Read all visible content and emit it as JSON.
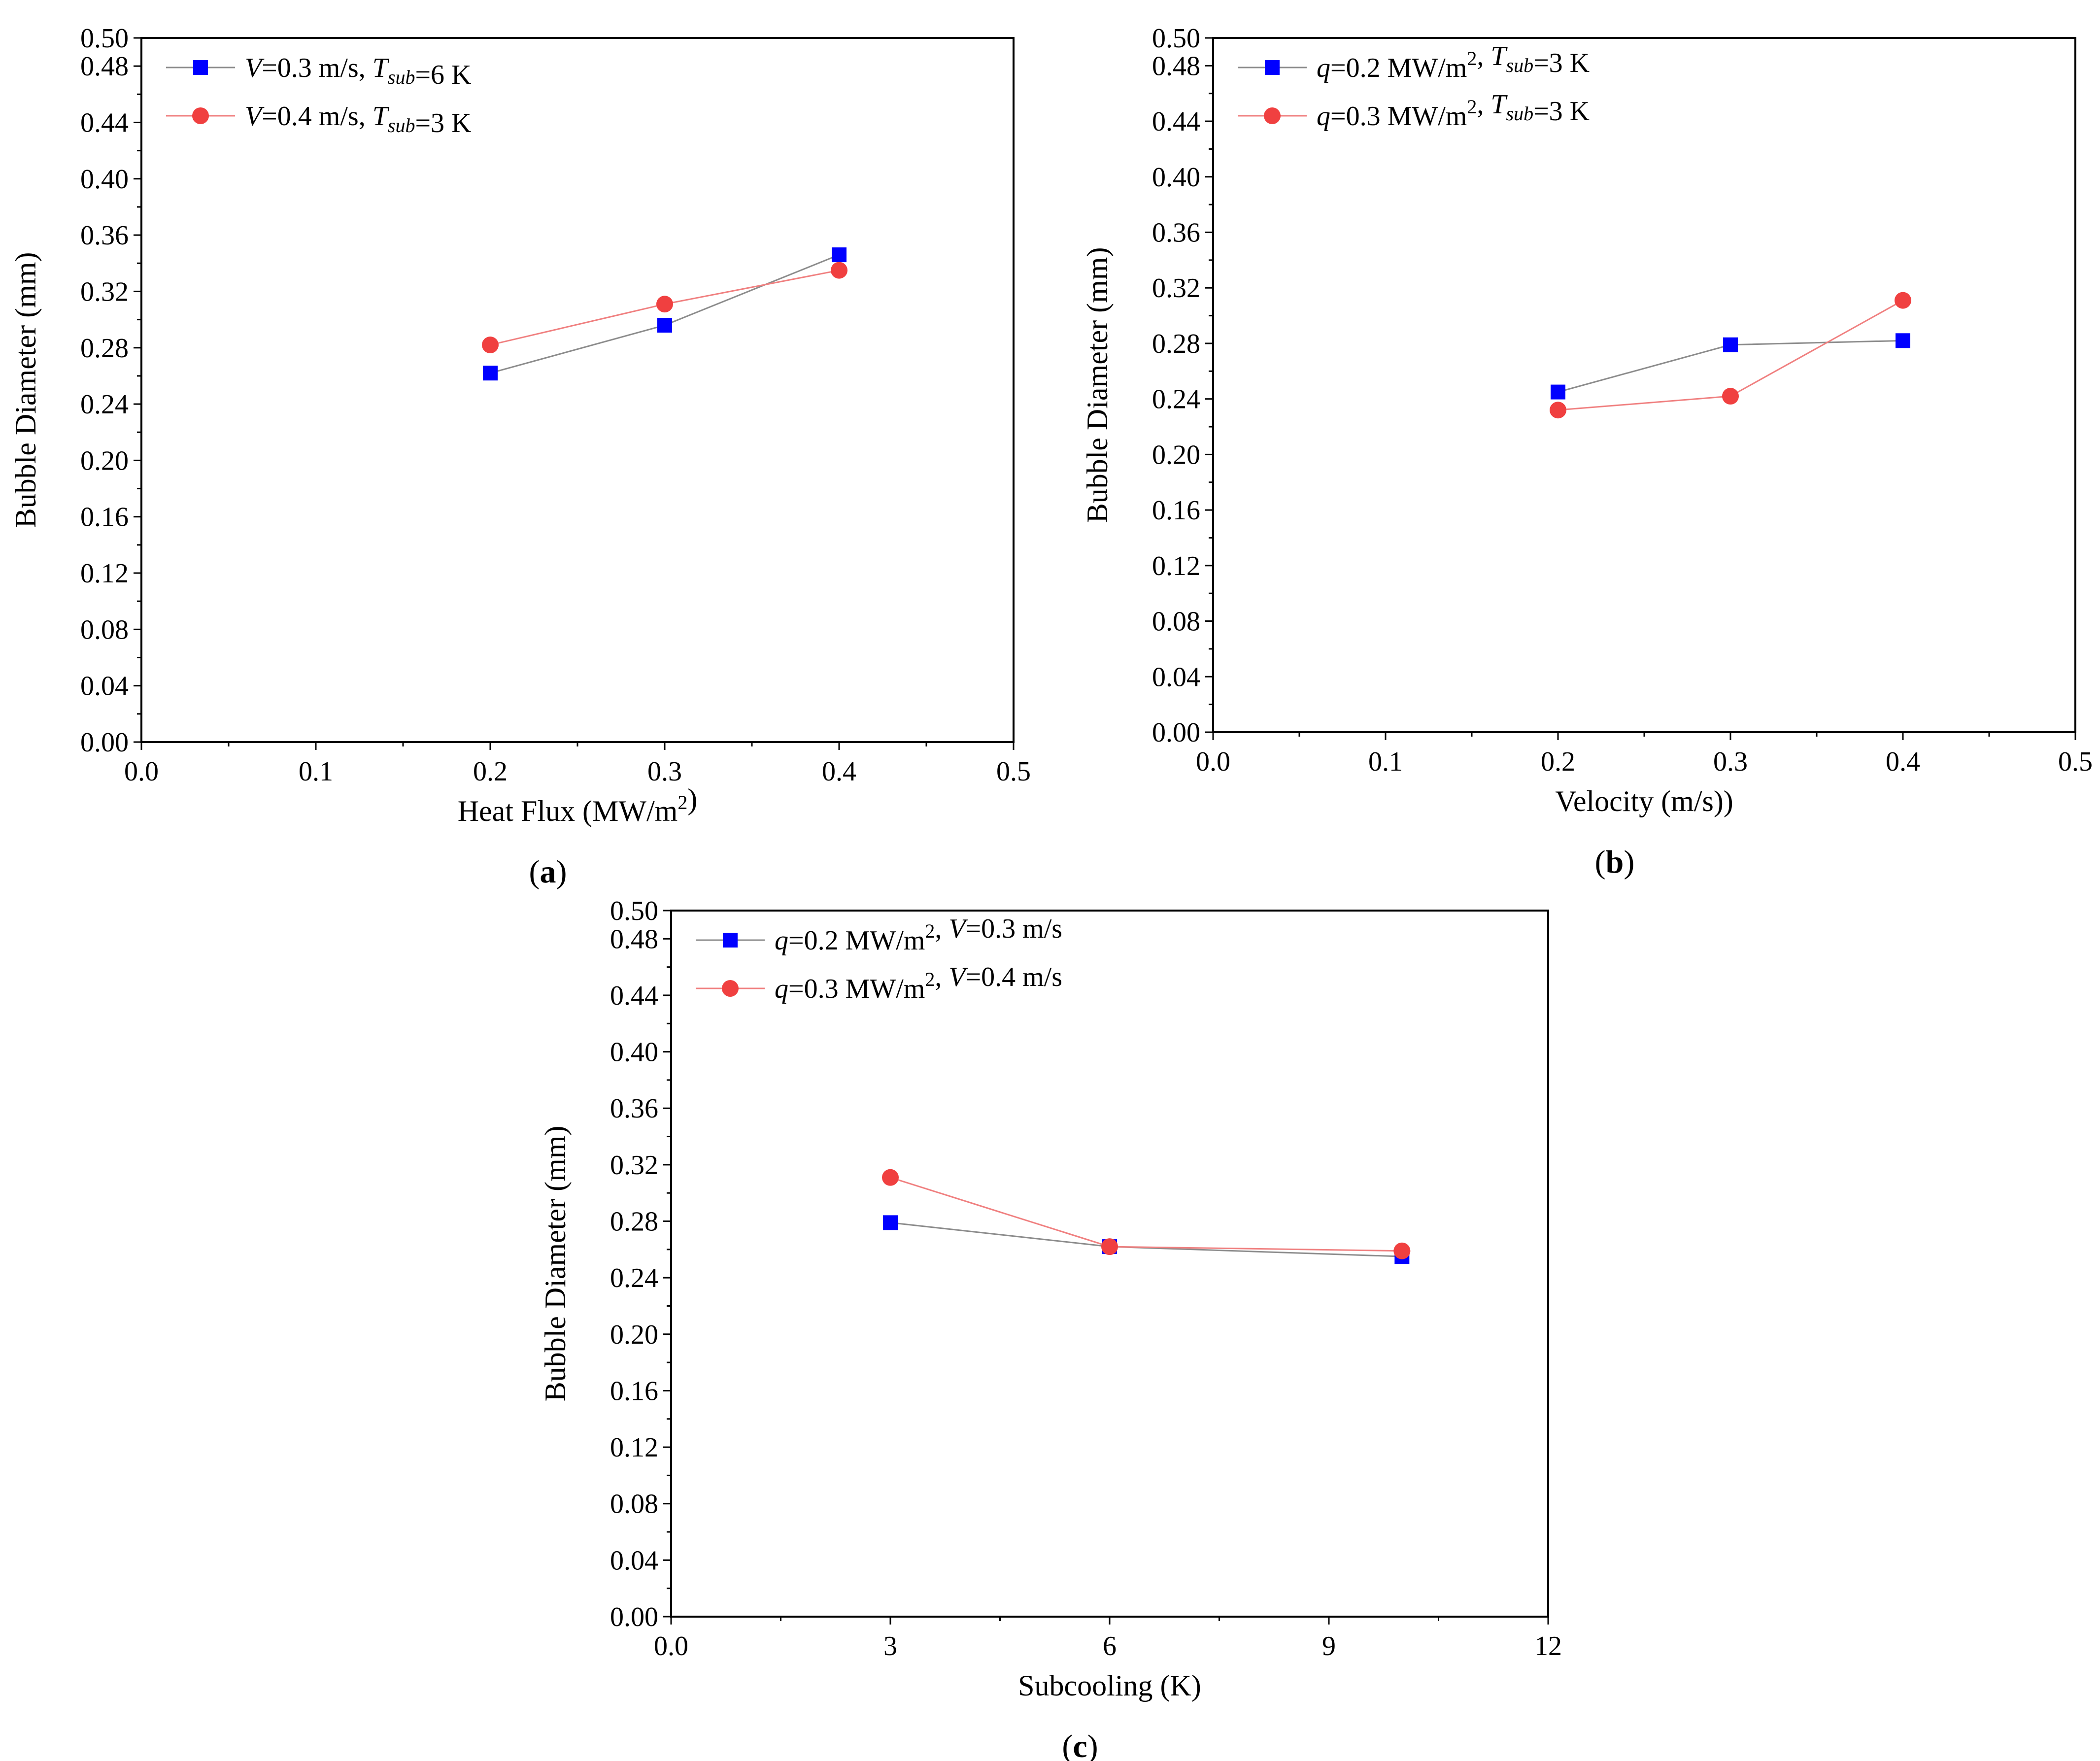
{
  "chart_data": [
    {
      "type": "line",
      "panel_label": "(a)",
      "title": "",
      "xlabel": "Heat Flux (MW/m2)",
      "xlabel_parts": [
        "Heat Flux (MW/m",
        "2",
        ")"
      ],
      "ylabel": "Bubble Diameter (mm)",
      "xlim": [
        0.0,
        0.5
      ],
      "ylim": [
        0.0,
        0.5
      ],
      "xticks": [
        0.0,
        0.1,
        0.2,
        0.3,
        0.4,
        0.5
      ],
      "xtick_labels": [
        "0.0",
        "0.1",
        "0.2",
        "0.3",
        "0.4",
        "0.5"
      ],
      "yticks": [
        0.0,
        0.04,
        0.08,
        0.12,
        0.16,
        0.2,
        0.24,
        0.28,
        0.32,
        0.36,
        0.4,
        0.44,
        0.48,
        0.5
      ],
      "ytick_labels": [
        "0.00",
        "0.04",
        "0.08",
        "0.12",
        "0.16",
        "0.20",
        "0.24",
        "0.28",
        "0.32",
        "0.36",
        "0.40",
        "0.44",
        "0.48",
        "0.50"
      ],
      "grid": false,
      "legend_position": "top-left",
      "series": [
        {
          "name": "V=0.3 m/s, Tsub=6 K",
          "legend_parts": [
            [
              "V",
              "italic"
            ],
            [
              "=0.3 m/s, ",
              "normal"
            ],
            [
              "T",
              "italic"
            ],
            [
              "sub",
              "italic-sub"
            ],
            [
              "=6 K",
              "normal"
            ]
          ],
          "marker": "square",
          "marker_color": "#0000ff",
          "line_color": "#8c8c8c",
          "x": [
            0.2,
            0.3,
            0.4
          ],
          "y": [
            0.262,
            0.296,
            0.346
          ]
        },
        {
          "name": "V=0.4 m/s, Tsub=3 K",
          "legend_parts": [
            [
              "V",
              "italic"
            ],
            [
              "=0.4 m/s, ",
              "normal"
            ],
            [
              "T",
              "italic"
            ],
            [
              "sub",
              "italic-sub"
            ],
            [
              "=3 K",
              "normal"
            ]
          ],
          "marker": "circle",
          "marker_color": "#f04040",
          "line_color": "#f08080",
          "x": [
            0.2,
            0.3,
            0.4
          ],
          "y": [
            0.282,
            0.311,
            0.335
          ]
        }
      ]
    },
    {
      "type": "line",
      "panel_label": "(b)",
      "title": "",
      "xlabel": "Velocity (m/s))",
      "xlabel_parts": [
        "Velocity (m/s))"
      ],
      "ylabel": "Bubble Diameter (mm)",
      "xlim": [
        0.0,
        0.5
      ],
      "ylim": [
        0.0,
        0.5
      ],
      "xticks": [
        0.0,
        0.1,
        0.2,
        0.3,
        0.4,
        0.5
      ],
      "xtick_labels": [
        "0.0",
        "0.1",
        "0.2",
        "0.3",
        "0.4",
        "0.5"
      ],
      "yticks": [
        0.0,
        0.04,
        0.08,
        0.12,
        0.16,
        0.2,
        0.24,
        0.28,
        0.32,
        0.36,
        0.4,
        0.44,
        0.48,
        0.5
      ],
      "ytick_labels": [
        "0.00",
        "0.04",
        "0.08",
        "0.12",
        "0.16",
        "0.20",
        "0.24",
        "0.28",
        "0.32",
        "0.36",
        "0.40",
        "0.44",
        "0.48",
        "0.50"
      ],
      "grid": false,
      "legend_position": "top-left",
      "series": [
        {
          "name": "q=0.2 MW/m2, Tsub=3 K",
          "legend_parts": [
            [
              "q",
              "italic"
            ],
            [
              "=0.2 MW/m",
              "normal"
            ],
            [
              "2",
              "sup"
            ],
            [
              ", ",
              "normal"
            ],
            [
              "T",
              "italic"
            ],
            [
              "sub",
              "italic-sub"
            ],
            [
              "=3 K",
              "normal"
            ]
          ],
          "marker": "square",
          "marker_color": "#0000ff",
          "line_color": "#8c8c8c",
          "x": [
            0.2,
            0.3,
            0.4
          ],
          "y": [
            0.245,
            0.279,
            0.282
          ]
        },
        {
          "name": "q=0.3 MW/m2, Tsub=3 K",
          "legend_parts": [
            [
              "q",
              "italic"
            ],
            [
              "=0.3 MW/m",
              "normal"
            ],
            [
              "2",
              "sup"
            ],
            [
              ", ",
              "normal"
            ],
            [
              "T",
              "italic"
            ],
            [
              "sub",
              "italic-sub"
            ],
            [
              "=3 K",
              "normal"
            ]
          ],
          "marker": "circle",
          "marker_color": "#f04040",
          "line_color": "#f08080",
          "x": [
            0.2,
            0.3,
            0.4
          ],
          "y": [
            0.232,
            0.242,
            0.311
          ]
        }
      ]
    },
    {
      "type": "line",
      "panel_label": "(c)",
      "title": "",
      "xlabel": "Subcooling (K)",
      "xlabel_parts": [
        "Subcooling (K)"
      ],
      "ylabel": "Bubble Diameter (mm)",
      "xlim": [
        0,
        12
      ],
      "ylim": [
        0.0,
        0.5
      ],
      "xticks": [
        0,
        3,
        6,
        9,
        12
      ],
      "xtick_labels": [
        "0.0",
        "3",
        "6",
        "9",
        "12"
      ],
      "yticks": [
        0.0,
        0.04,
        0.08,
        0.12,
        0.16,
        0.2,
        0.24,
        0.28,
        0.32,
        0.36,
        0.4,
        0.44,
        0.48,
        0.5
      ],
      "ytick_labels": [
        "0.00",
        "0.04",
        "0.08",
        "0.12",
        "0.16",
        "0.20",
        "0.24",
        "0.28",
        "0.32",
        "0.36",
        "0.40",
        "0.44",
        "0.48",
        "0.50"
      ],
      "grid": false,
      "legend_position": "top-left",
      "series": [
        {
          "name": "q=0.2 MW/m2, V=0.3 m/s",
          "legend_parts": [
            [
              "q",
              "italic"
            ],
            [
              "=0.2 MW/m",
              "normal"
            ],
            [
              "2",
              "sup"
            ],
            [
              ", ",
              "normal"
            ],
            [
              "V",
              "italic"
            ],
            [
              "=0.3 m/s",
              "normal"
            ]
          ],
          "marker": "square",
          "marker_color": "#0000ff",
          "line_color": "#8c8c8c",
          "x": [
            3,
            6,
            10
          ],
          "y": [
            0.279,
            0.262,
            0.255
          ]
        },
        {
          "name": "q=0.3 MW/m2, V=0.4 m/s",
          "legend_parts": [
            [
              "q",
              "italic"
            ],
            [
              "=0.3 MW/m",
              "normal"
            ],
            [
              "2",
              "sup"
            ],
            [
              ", ",
              "normal"
            ],
            [
              "V",
              "italic"
            ],
            [
              "=0.4 m/s",
              "normal"
            ]
          ],
          "marker": "circle",
          "marker_color": "#f04040",
          "line_color": "#f08080",
          "x": [
            3,
            6,
            10
          ],
          "y": [
            0.311,
            0.262,
            0.259
          ]
        }
      ]
    }
  ]
}
